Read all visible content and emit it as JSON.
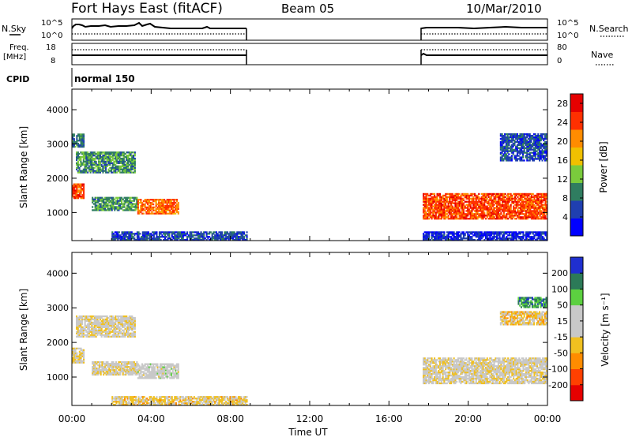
{
  "header": {
    "station": "Fort Hays East (fitACF)",
    "beam": "Beam 05",
    "date": "10/Mar/2010"
  },
  "labels": {
    "nsky": "N.Sky",
    "nsky_top": "10^5",
    "nsky_bottom": "10^0",
    "nsearch": "N.Search",
    "nsearch_top": "10^5",
    "nsearch_bottom": "10^0",
    "freq": "Freq.",
    "freq_unit": "[MHz]",
    "freq_top": "18",
    "freq_bottom": "8",
    "nave": "Nave",
    "nave_top": "80",
    "nave_bottom": "0",
    "cpid": "CPID",
    "cpid_value": "normal 150",
    "slant_range": "Slant Range [km]",
    "time_axis": "Time UT",
    "power_label": "Power [dB]",
    "velocity_label": "Velocity [m s⁻¹]"
  },
  "colors": {
    "power_scale": [
      "#0000ff",
      "#1f3fb0",
      "#2f7d60",
      "#7acb3c",
      "#f0c000",
      "#ff8c00",
      "#ff3000",
      "#e60000"
    ],
    "velocity_scale": [
      "#1f2fd0",
      "#2c7a58",
      "#5cd040",
      "#c8c8c8",
      "#c8c8c8",
      "#f0c020",
      "#ff8c00",
      "#ff4000",
      "#e60000"
    ]
  },
  "chart_data": [
    {
      "type": "heatmap",
      "title": "",
      "xlabel": "Time UT",
      "ylabel": "Slant Range [km]",
      "x_ticks": [
        "00:00",
        "04:00",
        "08:00",
        "12:00",
        "16:00",
        "20:00",
        "00:00"
      ],
      "y_ticks": [
        "1000",
        "2000",
        "3000",
        "4000"
      ],
      "xlim_hours": [
        0,
        24
      ],
      "ylim_km": [
        180,
        4600
      ],
      "colorbar": {
        "label": "Power [dB]",
        "ticks": [
          "4",
          "8",
          "12",
          "16",
          "20",
          "24",
          "28"
        ],
        "range": [
          0,
          30
        ]
      },
      "data_gaps_hours": [
        [
          8.9,
          17.7
        ]
      ],
      "echo_regions": [
        {
          "t": [
            0.0,
            0.6
          ],
          "range_km": [
            1400,
            1850
          ],
          "value": 24
        },
        {
          "t": [
            0.0,
            0.6
          ],
          "range_km": [
            2900,
            3300
          ],
          "value": 8
        },
        {
          "t": [
            0.2,
            3.2
          ],
          "range_km": [
            2150,
            2750
          ],
          "value": 10
        },
        {
          "t": [
            1.0,
            3.3
          ],
          "range_km": [
            1050,
            1450
          ],
          "value": 10
        },
        {
          "t": [
            3.3,
            5.4
          ],
          "range_km": [
            950,
            1400
          ],
          "value": 22
        },
        {
          "t": [
            2.0,
            8.8
          ],
          "range_km": [
            180,
            450
          ],
          "value": 6
        },
        {
          "t": [
            17.7,
            24.0
          ],
          "range_km": [
            800,
            1550
          ],
          "value": 24
        },
        {
          "t": [
            21.6,
            24.0
          ],
          "range_km": [
            2500,
            3300
          ],
          "value": 6
        },
        {
          "t": [
            17.7,
            24.0
          ],
          "range_km": [
            180,
            450
          ],
          "value": 4
        }
      ]
    },
    {
      "type": "heatmap",
      "title": "",
      "xlabel": "Time UT",
      "ylabel": "Slant Range [km]",
      "x_ticks": [
        "00:00",
        "04:00",
        "08:00",
        "12:00",
        "16:00",
        "20:00",
        "00:00"
      ],
      "y_ticks": [
        "1000",
        "2000",
        "3000",
        "4000"
      ],
      "xlim_hours": [
        0,
        24
      ],
      "ylim_km": [
        180,
        4600
      ],
      "colorbar": {
        "label": "Velocity [m s⁻¹]",
        "ticks": [
          "200",
          "100",
          "50",
          "15",
          "-15",
          "-50",
          "-100",
          "-200"
        ],
        "range": [
          -250,
          250
        ]
      },
      "data_gaps_hours": [
        [
          8.9,
          17.7
        ]
      ],
      "echo_regions": [
        {
          "t": [
            0.0,
            0.6
          ],
          "range_km": [
            1400,
            1850
          ],
          "value": -10
        },
        {
          "t": [
            0.2,
            3.2
          ],
          "range_km": [
            2150,
            2750
          ],
          "value": 0
        },
        {
          "t": [
            1.0,
            3.3
          ],
          "range_km": [
            1050,
            1450
          ],
          "value": 0
        },
        {
          "t": [
            3.3,
            5.4
          ],
          "range_km": [
            950,
            1400
          ],
          "value": 30
        },
        {
          "t": [
            2.0,
            8.8
          ],
          "range_km": [
            180,
            450
          ],
          "value": -30
        },
        {
          "t": [
            17.7,
            24.0
          ],
          "range_km": [
            800,
            1550
          ],
          "value": 0
        },
        {
          "t": [
            22.5,
            24.0
          ],
          "range_km": [
            3000,
            3300
          ],
          "value": 150
        },
        {
          "t": [
            21.6,
            24.0
          ],
          "range_km": [
            2500,
            2900
          ],
          "value": -40
        }
      ]
    }
  ]
}
